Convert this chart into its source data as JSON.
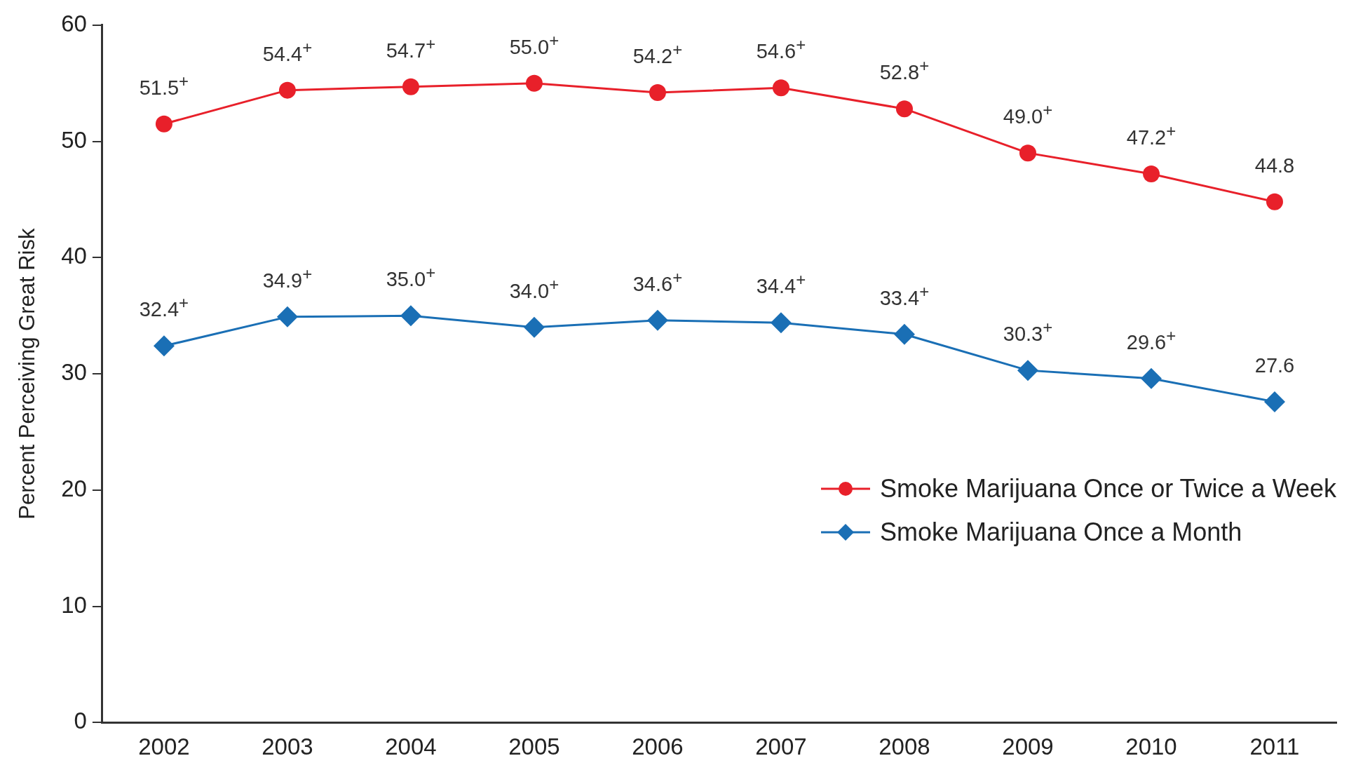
{
  "chart_data": {
    "type": "line",
    "ylabel": "Percent Perceiving Great Risk",
    "categories": [
      "2002",
      "2003",
      "2004",
      "2005",
      "2006",
      "2007",
      "2008",
      "2009",
      "2010",
      "2011"
    ],
    "series": [
      {
        "name": "Smoke Marijuana Once or Twice a Week",
        "color": "#e8202a",
        "marker": "circle",
        "values": [
          51.5,
          54.4,
          54.7,
          55.0,
          54.2,
          54.6,
          52.8,
          49.0,
          47.2,
          44.8
        ],
        "value_labels": [
          "51.5$^{+}$",
          "54.4$^{+}$",
          "54.7$^{+}$",
          "55.0$^{+}$",
          "54.2$^{+}$",
          "54.6$^{+}$",
          "52.8$^{+}$",
          "49.0$^{+}$",
          "47.2$^{+}$",
          "44.8"
        ]
      },
      {
        "name": "Smoke Marijuana Once a Month",
        "color": "#1a6fb5",
        "marker": "diamond",
        "values": [
          32.4,
          34.9,
          35.0,
          34.0,
          34.6,
          34.4,
          33.4,
          30.3,
          29.6,
          27.6
        ],
        "value_labels": [
          "32.4$^{+}$",
          "34.9$^{+}$",
          "35.0$^{+}$",
          "34.0$^{+}$",
          "34.6$^{+}$",
          "34.4$^{+}$",
          "33.4$^{+}$",
          "30.3$^{+}$",
          "29.6$^{+}$",
          "27.6"
        ]
      }
    ],
    "ylim": [
      0,
      60
    ],
    "yticks": [
      0,
      10,
      20,
      30,
      40,
      50,
      60
    ],
    "grid": false,
    "legend": "bottom right"
  }
}
